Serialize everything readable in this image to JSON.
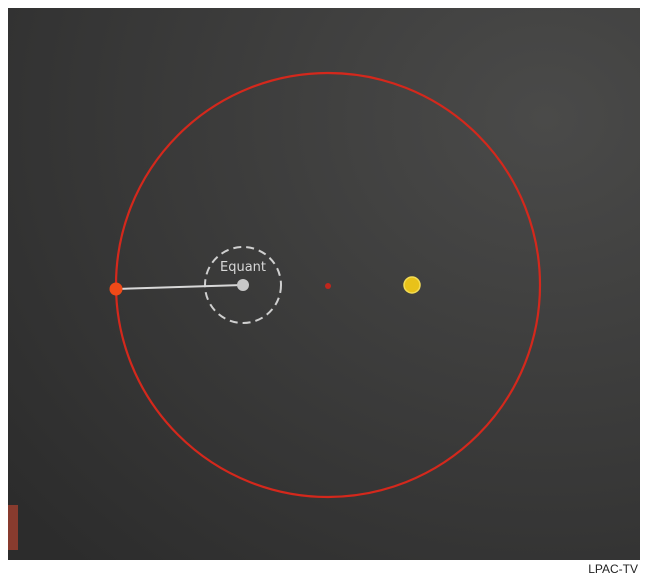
{
  "diagram": {
    "equant_label": "Equant"
  },
  "credit": "LPAC-TV"
}
